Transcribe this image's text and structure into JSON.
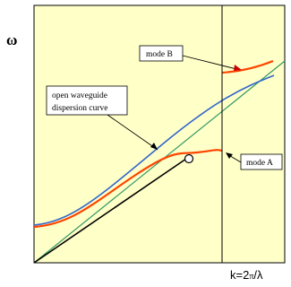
{
  "diagram": {
    "y_axis_label": "ω",
    "x_axis_label_prefix": "k=2",
    "x_axis_label_pi": "π",
    "x_axis_label_suffix": "/λ",
    "labels": {
      "open_waveguide_line1": "open waveguide",
      "open_waveguide_line2": "dispersion curve",
      "mode_a": "mode A",
      "mode_b": "mode B"
    },
    "colors": {
      "plot_background": "#ffffc8",
      "frame": "#000000",
      "mode_curve": "#ff4400",
      "open_waveguide_curve": "#3366cc",
      "light_line": "#339966",
      "group_line": "#000000",
      "label_box_fill": "#ffffff"
    }
  }
}
